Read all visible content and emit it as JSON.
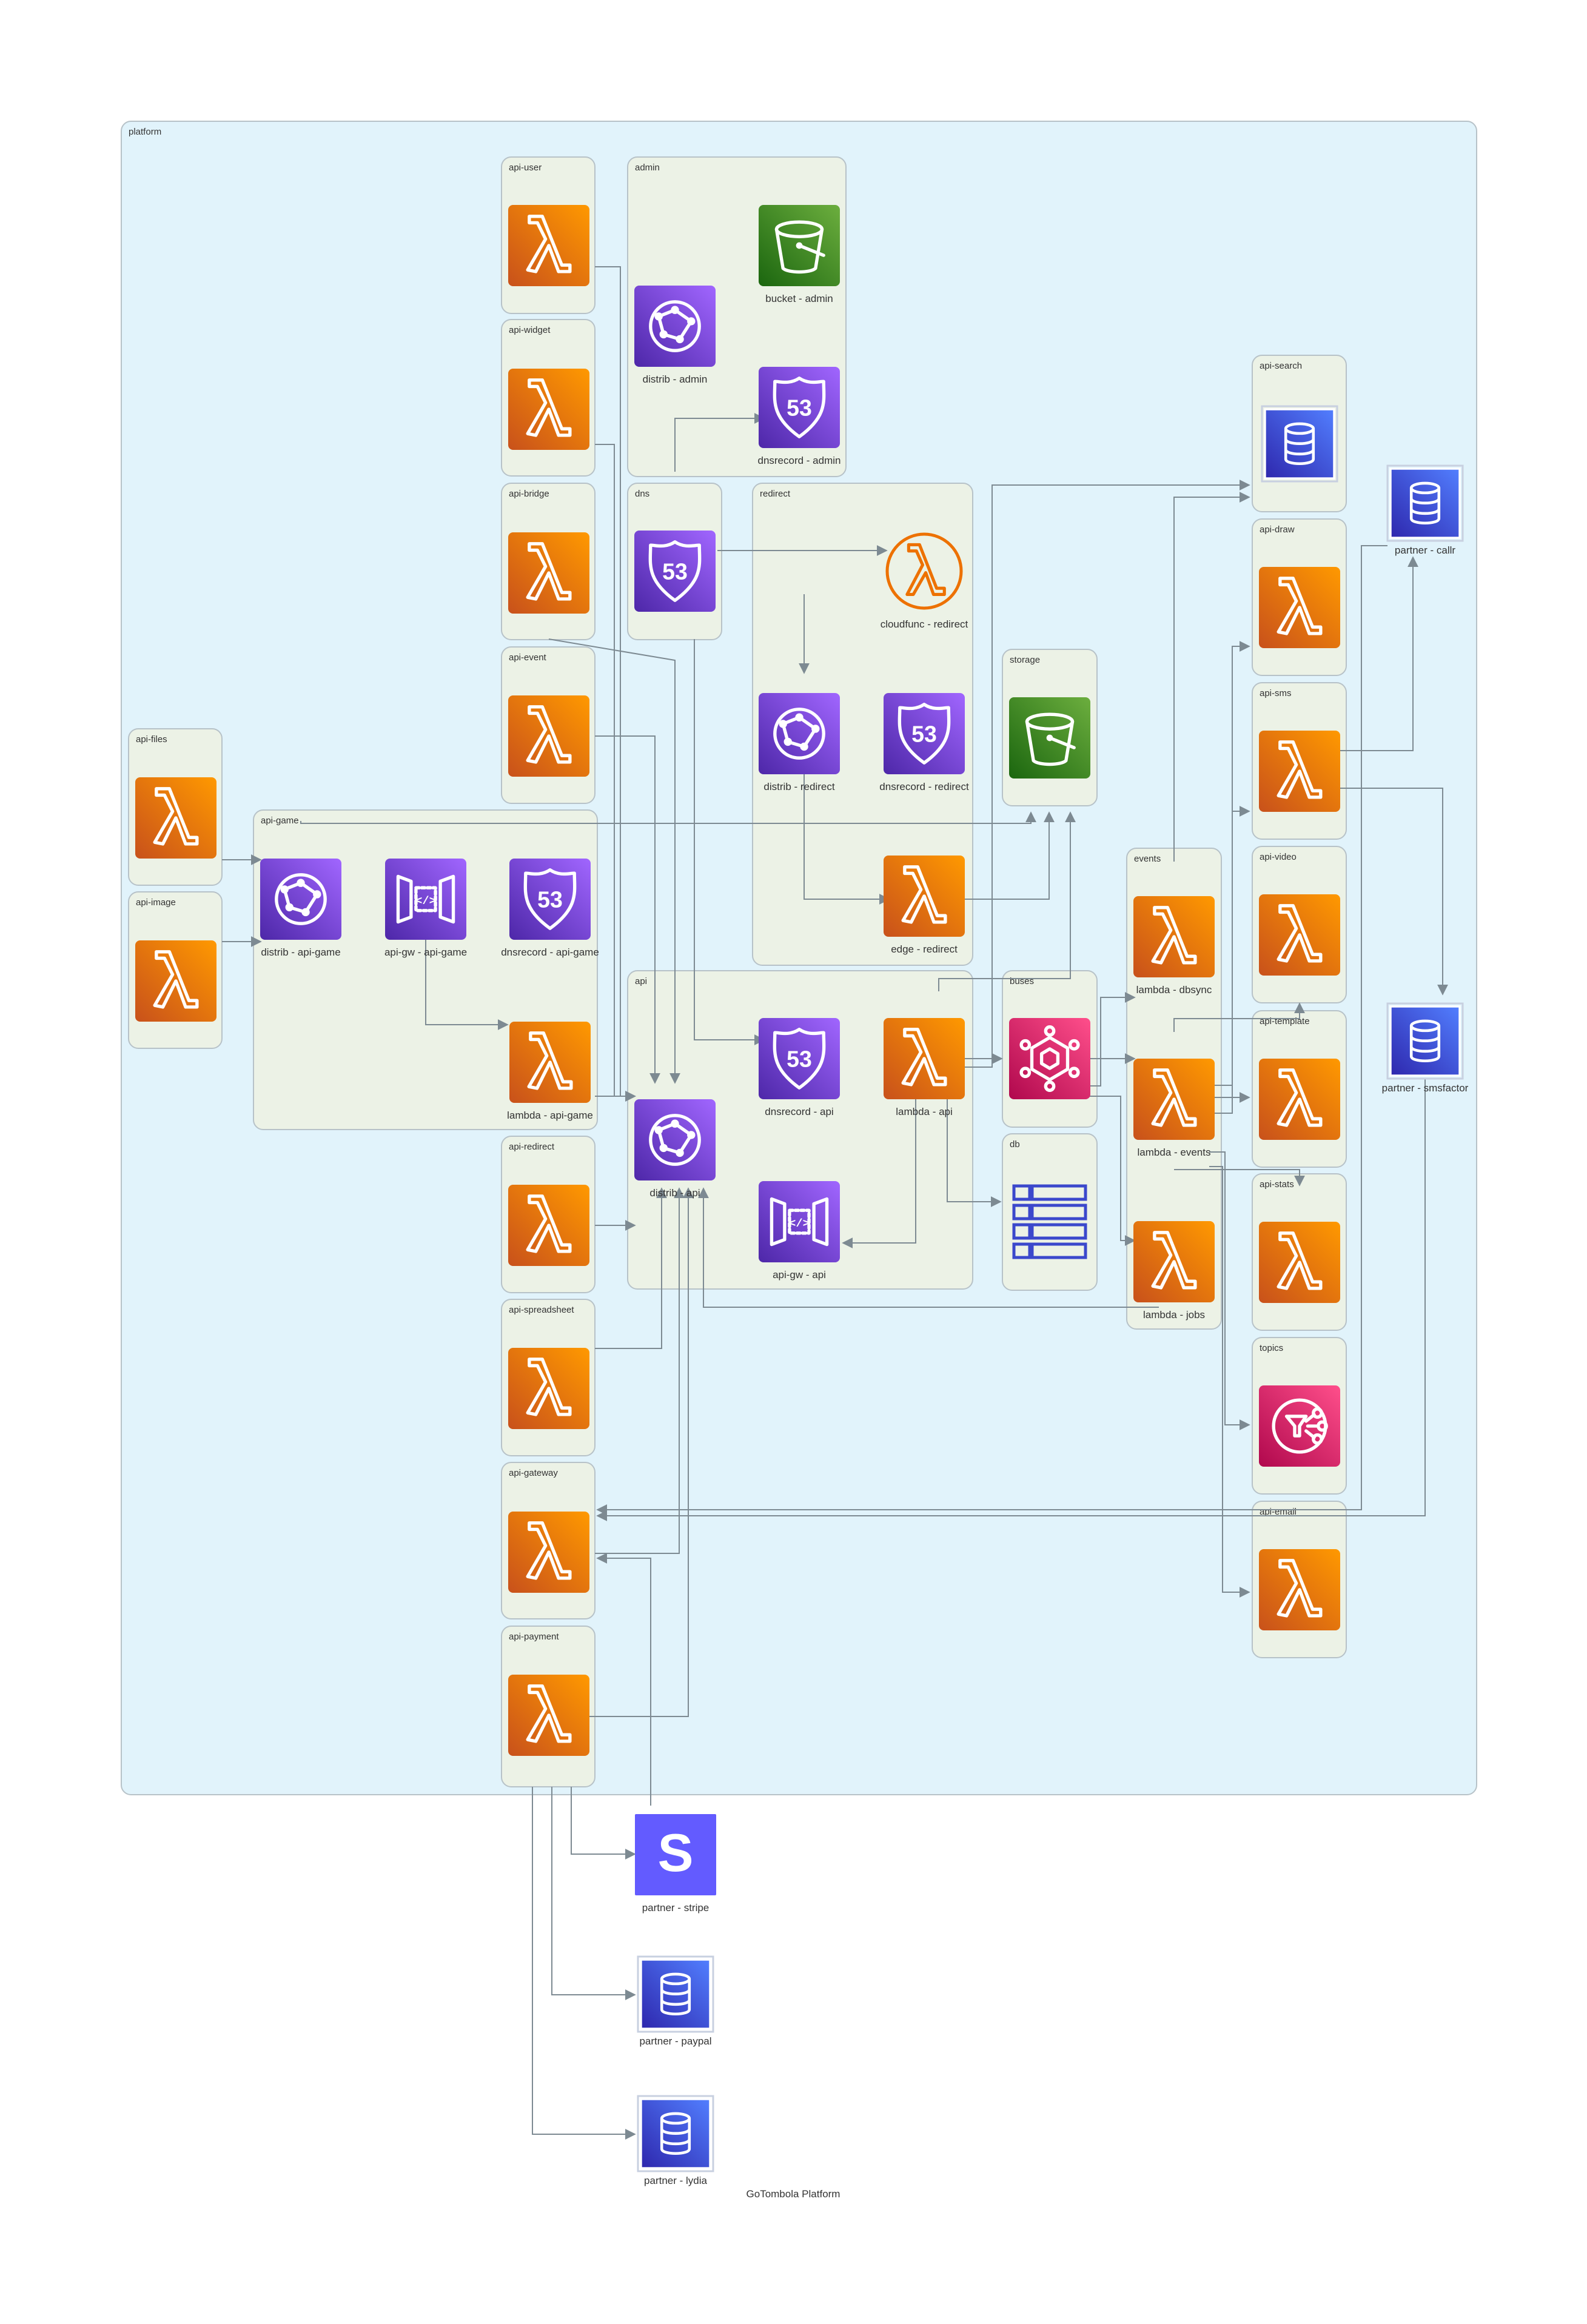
{
  "diagram_title": "GoTombola Platform",
  "colors": {
    "platform_fill": "#e1f3fb",
    "group_fill": "#ecf2e6",
    "group_stroke": "#b7c2c8",
    "edge": "#7d8a92",
    "lambda": "#ed7100",
    "purple": "#8c4fff",
    "green": "#3f8624",
    "pink": "#e7157b",
    "blue": "#3b48cc",
    "stripe": "#635bff"
  },
  "groups": [
    {
      "id": "platform",
      "title": "platform"
    },
    {
      "id": "api-user",
      "title": "api-user"
    },
    {
      "id": "api-widget",
      "title": "api-widget"
    },
    {
      "id": "api-bridge",
      "title": "api-bridge"
    },
    {
      "id": "api-event",
      "title": "api-event"
    },
    {
      "id": "api-files",
      "title": "api-files"
    },
    {
      "id": "api-image",
      "title": "api-image"
    },
    {
      "id": "api-game",
      "title": "api-game"
    },
    {
      "id": "api-redirect",
      "title": "api-redirect"
    },
    {
      "id": "api-spreadsheet",
      "title": "api-spreadsheet"
    },
    {
      "id": "api-gateway",
      "title": "api-gateway"
    },
    {
      "id": "api-payment",
      "title": "api-payment"
    },
    {
      "id": "admin",
      "title": "admin"
    },
    {
      "id": "dns",
      "title": "dns"
    },
    {
      "id": "redirect",
      "title": "redirect"
    },
    {
      "id": "storage",
      "title": "storage"
    },
    {
      "id": "api",
      "title": "api"
    },
    {
      "id": "buses",
      "title": "buses"
    },
    {
      "id": "db",
      "title": "db"
    },
    {
      "id": "events",
      "title": "events"
    },
    {
      "id": "api-search",
      "title": "api-search"
    },
    {
      "id": "api-draw",
      "title": "api-draw"
    },
    {
      "id": "api-sms",
      "title": "api-sms"
    },
    {
      "id": "api-video",
      "title": "api-video"
    },
    {
      "id": "api-template",
      "title": "api-template"
    },
    {
      "id": "api-stats",
      "title": "api-stats"
    },
    {
      "id": "topics",
      "title": "topics"
    },
    {
      "id": "api-email",
      "title": "api-email"
    }
  ],
  "nodes": [
    {
      "id": "user",
      "type": "lambda",
      "label": ""
    },
    {
      "id": "widget",
      "type": "lambda",
      "label": ""
    },
    {
      "id": "bridge",
      "type": "lambda",
      "label": ""
    },
    {
      "id": "event",
      "type": "lambda",
      "label": ""
    },
    {
      "id": "files",
      "type": "lambda",
      "label": ""
    },
    {
      "id": "image",
      "type": "lambda",
      "label": ""
    },
    {
      "id": "distrib-game",
      "type": "cloudfront",
      "label": "distrib - api-game"
    },
    {
      "id": "apigw-game",
      "type": "apigw",
      "label": "api-gw - api-game"
    },
    {
      "id": "dns-game",
      "type": "route53",
      "label": "dnsrecord - api-game"
    },
    {
      "id": "lambda-game",
      "type": "lambda",
      "label": "lambda - api-game"
    },
    {
      "id": "redir",
      "type": "lambda",
      "label": ""
    },
    {
      "id": "sheet",
      "type": "lambda",
      "label": ""
    },
    {
      "id": "gateway",
      "type": "lambda",
      "label": ""
    },
    {
      "id": "payment",
      "type": "lambda",
      "label": ""
    },
    {
      "id": "bucket-admin",
      "type": "s3",
      "label": "bucket - admin"
    },
    {
      "id": "distrib-admin",
      "type": "cloudfront",
      "label": "distrib - admin"
    },
    {
      "id": "dns-admin",
      "type": "route53",
      "label": "dnsrecord - admin"
    },
    {
      "id": "dns-zone",
      "type": "route53",
      "label": ""
    },
    {
      "id": "cloudfunc",
      "type": "cloudfunc",
      "label": "cloudfunc - redirect"
    },
    {
      "id": "distrib-redirect",
      "type": "cloudfront",
      "label": "distrib - redirect"
    },
    {
      "id": "dns-redirect",
      "type": "route53",
      "label": "dnsrecord - redirect"
    },
    {
      "id": "edge-redirect",
      "type": "lambda",
      "label": "edge - redirect"
    },
    {
      "id": "storage-bucket",
      "type": "s3",
      "label": ""
    },
    {
      "id": "dns-api",
      "type": "route53",
      "label": "dnsrecord - api"
    },
    {
      "id": "lambda-api",
      "type": "lambda",
      "label": "lambda - api"
    },
    {
      "id": "distrib-api",
      "type": "cloudfront",
      "label": "distrib - api"
    },
    {
      "id": "apigw-api",
      "type": "apigw",
      "label": "api-gw - api"
    },
    {
      "id": "bus",
      "type": "eventbridge",
      "label": ""
    },
    {
      "id": "table",
      "type": "dynamodb",
      "label": ""
    },
    {
      "id": "dbsync",
      "type": "lambda",
      "label": "lambda - dbsync"
    },
    {
      "id": "lambda-events",
      "type": "lambda",
      "label": "lambda - events"
    },
    {
      "id": "lambda-jobs",
      "type": "lambda",
      "label": "lambda - jobs"
    },
    {
      "id": "search",
      "type": "database",
      "label": ""
    },
    {
      "id": "draw",
      "type": "lambda",
      "label": ""
    },
    {
      "id": "sms",
      "type": "lambda",
      "label": ""
    },
    {
      "id": "video",
      "type": "lambda",
      "label": ""
    },
    {
      "id": "template",
      "type": "lambda",
      "label": ""
    },
    {
      "id": "stats",
      "type": "lambda",
      "label": ""
    },
    {
      "id": "sns",
      "type": "sns",
      "label": ""
    },
    {
      "id": "email",
      "type": "lambda",
      "label": ""
    },
    {
      "id": "callr",
      "type": "database",
      "label": "partner - callr"
    },
    {
      "id": "smsfactor",
      "type": "database",
      "label": "partner - smsfactor"
    },
    {
      "id": "stripe",
      "type": "stripe",
      "label": "partner - stripe"
    },
    {
      "id": "paypal",
      "type": "database",
      "label": "partner - paypal"
    },
    {
      "id": "lydia",
      "type": "database",
      "label": "partner - lydia"
    }
  ],
  "icon_names": {
    "lambda": "lambda-icon",
    "cloudfront": "cloudfront-icon",
    "apigw": "api-gateway-icon",
    "route53": "route53-icon",
    "s3": "bucket-icon",
    "cloudfunc": "cloud-function-icon",
    "eventbridge": "eventbridge-icon",
    "dynamodb": "table-icon",
    "sns": "topic-icon",
    "database": "database-icon",
    "stripe": "stripe-icon"
  },
  "route53_text": "53",
  "stripe_text": "S",
  "apigw_text": "</>"
}
